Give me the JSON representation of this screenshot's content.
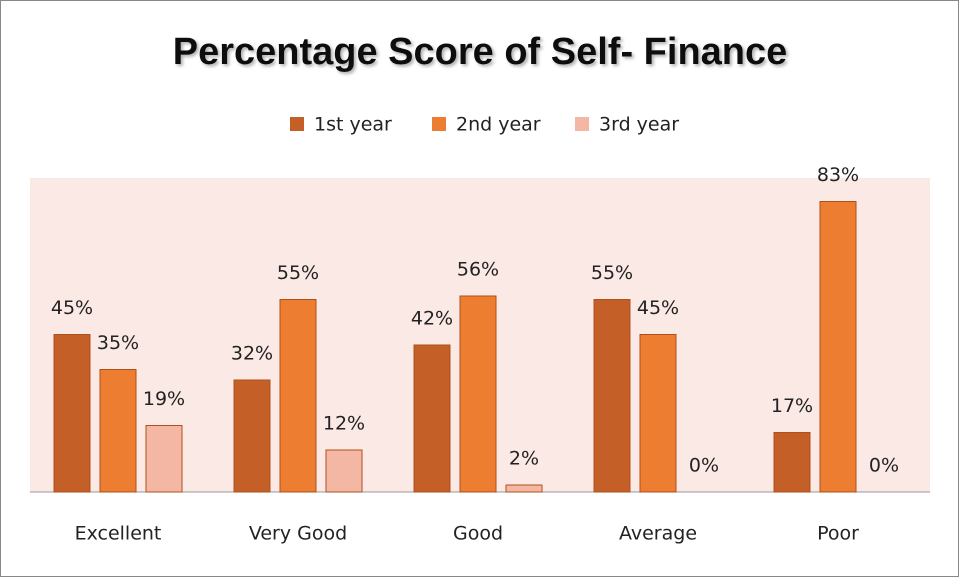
{
  "chart_data": {
    "type": "bar",
    "title": "Percentage Score of Self- Finance",
    "categories": [
      "Excellent",
      "Very Good",
      "Good",
      "Average",
      "Poor"
    ],
    "series": [
      {
        "name": "1st year",
        "color": "#c55f28",
        "values": [
          45,
          32,
          42,
          55,
          17
        ],
        "value_labels": [
          "45%",
          "32%",
          "42%",
          "55%",
          "17%"
        ]
      },
      {
        "name": "2nd year",
        "color": "#ed7d31",
        "values": [
          35,
          55,
          56,
          45,
          83
        ],
        "value_labels": [
          "35%",
          "55%",
          "56%",
          "45%",
          "83%"
        ]
      },
      {
        "name": "3rd year",
        "color": "#f4b7a3",
        "values": [
          19,
          12,
          2,
          0,
          0
        ],
        "value_labels": [
          "19%",
          "12%",
          "2%",
          "0%",
          "0%"
        ]
      }
    ],
    "legend": "top"
  }
}
